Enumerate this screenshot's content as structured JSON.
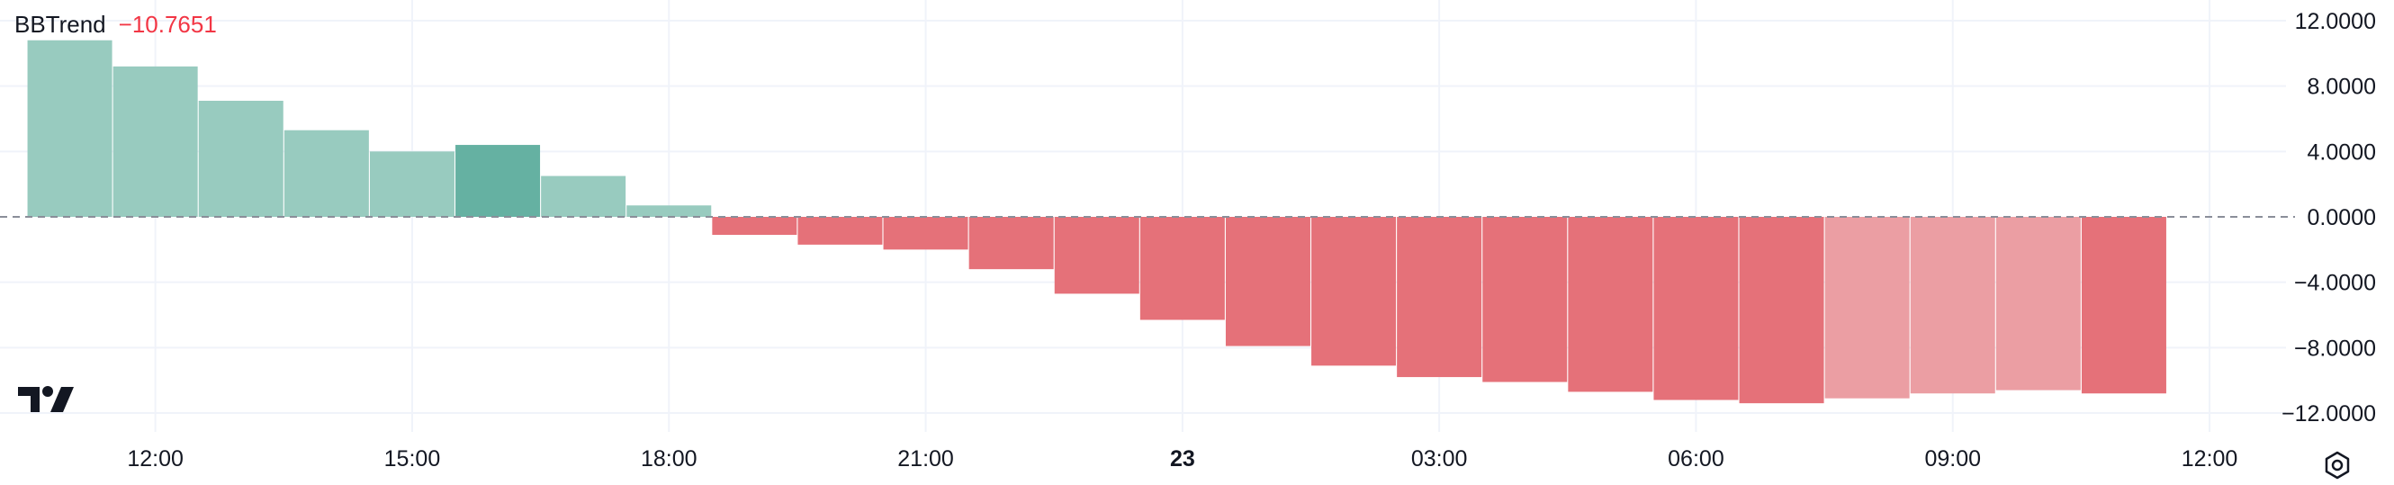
{
  "legend": {
    "name": "BBTrend",
    "value": "−10.7651"
  },
  "colors": {
    "positive": "#98cbbf",
    "positive_highlight": "#65b1a2",
    "negative": "#e57179",
    "negative_light": "#eb9ea3",
    "grid": "#f0f3fa",
    "text": "#131722"
  },
  "icons": {
    "logo": "tradingview-logo-icon",
    "settings": "settings-icon"
  },
  "chart_data": {
    "type": "bar",
    "title": "",
    "xlabel": "",
    "ylabel": "",
    "ylim": [
      -12.0,
      12.0
    ],
    "y_ticks": [
      "12.0000",
      "8.0000",
      "4.0000",
      "0.0000",
      "−4.0000",
      "−8.0000",
      "−12.0000"
    ],
    "y_tick_values": [
      12,
      8,
      4,
      0,
      -4,
      -8,
      -12
    ],
    "x_ticks": [
      "12:00",
      "15:00",
      "18:00",
      "21:00",
      "23",
      "03:00",
      "06:00",
      "09:00",
      "12:00"
    ],
    "x_tick_hours": [
      12,
      15,
      18,
      21,
      24,
      27,
      30,
      33,
      36
    ],
    "bold_ticks": [
      "23"
    ],
    "bar_hours": [
      11,
      12,
      13,
      14,
      15,
      16,
      17,
      18,
      19,
      20,
      21,
      22,
      23,
      24,
      25,
      26,
      27,
      28,
      29,
      30,
      31,
      32,
      33,
      34,
      35
    ],
    "values": [
      10.8,
      9.2,
      7.1,
      5.3,
      4.0,
      4.4,
      2.5,
      0.7,
      -1.1,
      -1.7,
      -2.0,
      -3.2,
      -4.7,
      -6.3,
      -7.9,
      -9.1,
      -9.8,
      -10.1,
      -10.7,
      -11.2,
      -11.4,
      -11.1,
      -10.8,
      -10.6,
      -10.8
    ],
    "bar_styles": [
      "positive",
      "positive",
      "positive",
      "positive",
      "positive",
      "positive_highlight",
      "positive",
      "positive",
      "negative",
      "negative",
      "negative",
      "negative",
      "negative",
      "negative",
      "negative",
      "negative",
      "negative",
      "negative",
      "negative",
      "negative",
      "negative",
      "negative_light",
      "negative_light",
      "negative_light",
      "negative"
    ],
    "zero_line": "dashed",
    "grid": true,
    "legend_position": "top-left"
  }
}
